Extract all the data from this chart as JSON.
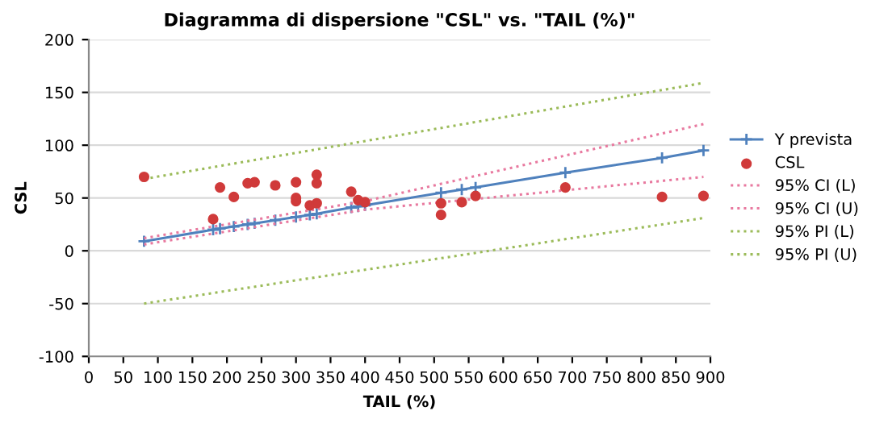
{
  "chart_data": {
    "type": "scatter",
    "title": "Diagramma di dispersione \"CSL\" vs. \"TAIL (%)\"",
    "xlabel": "TAIL (%)",
    "ylabel": "CSL",
    "series": [
      {
        "name": "Y prevista",
        "type": "line",
        "marker": "cross",
        "line_style": "solid",
        "color": "#4f81bd",
        "x": [
          80,
          180,
          190,
          210,
          230,
          240,
          270,
          300,
          320,
          330,
          380,
          390,
          400,
          510,
          540,
          560,
          690,
          830,
          890
        ],
        "values": [
          9,
          20,
          21,
          23,
          25,
          26,
          29,
          32,
          34,
          35,
          41,
          42,
          43,
          55,
          58,
          60,
          74,
          88,
          95
        ]
      },
      {
        "name": "CSL",
        "marker": "circle",
        "color": "#d03a3a",
        "x": [
          80,
          180,
          190,
          210,
          230,
          240,
          270,
          300,
          300,
          300,
          320,
          330,
          330,
          330,
          380,
          390,
          400,
          510,
          510,
          540,
          560,
          690,
          830,
          890
        ],
        "values": [
          70,
          30,
          60,
          51,
          64,
          65,
          62,
          65,
          50,
          47,
          43,
          72,
          64,
          45,
          56,
          48,
          46,
          45,
          34,
          46,
          52,
          60,
          51,
          52
        ]
      },
      {
        "name": "95% CI (L)",
        "type": "line",
        "marker": "none",
        "line_style": "dotted",
        "color": "#e8799f",
        "x": [
          80,
          400,
          890
        ],
        "values": [
          6,
          39,
          70
        ]
      },
      {
        "name": "95% CI (U)",
        "type": "line",
        "marker": "none",
        "line_style": "dotted",
        "color": "#e8799f",
        "x": [
          80,
          400,
          890
        ],
        "values": [
          12,
          47,
          120
        ]
      },
      {
        "name": "95% PI (L)",
        "type": "line",
        "marker": "none",
        "line_style": "dotted",
        "color": "#9bbb59",
        "x": [
          80,
          890
        ],
        "values": [
          -50,
          31
        ]
      },
      {
        "name": "95% PI (U)",
        "type": "line",
        "marker": "none",
        "line_style": "dotted",
        "color": "#9bbb59",
        "x": [
          80,
          890
        ],
        "values": [
          68,
          159
        ]
      }
    ],
    "xlim": [
      0,
      900
    ],
    "xticks": [
      0,
      50,
      100,
      150,
      200,
      250,
      300,
      350,
      400,
      450,
      500,
      550,
      600,
      650,
      700,
      750,
      800,
      850,
      900
    ],
    "ylim": [
      -100,
      200
    ],
    "yticks": [
      -100,
      -50,
      0,
      50,
      100,
      150,
      200
    ],
    "grid": "y",
    "legend": "right"
  }
}
